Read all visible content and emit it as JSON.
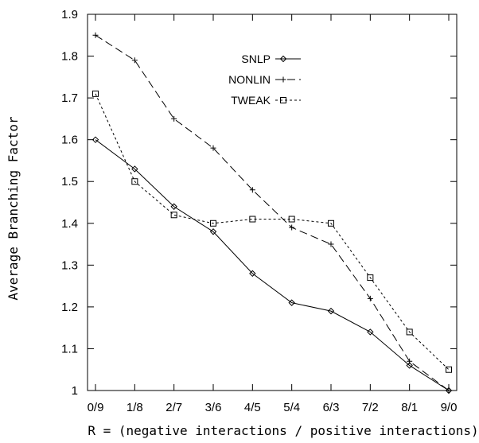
{
  "chart_data": {
    "type": "line",
    "title": "",
    "xlabel": "R = (negative interactions / positive interactions)",
    "ylabel": "Average Branching Factor",
    "categories": [
      "0/9",
      "1/8",
      "2/7",
      "3/6",
      "4/5",
      "5/4",
      "6/3",
      "7/2",
      "8/1",
      "9/0"
    ],
    "ylim": [
      1,
      1.9
    ],
    "yticks": [
      "1",
      "1.1",
      "1.2",
      "1.3",
      "1.4",
      "1.5",
      "1.6",
      "1.7",
      "1.8",
      "1.9"
    ],
    "grid": false,
    "legend_position": "top-center",
    "series": [
      {
        "name": "SNLP",
        "marker": "diamond",
        "dash": "solid",
        "values": [
          1.6,
          1.53,
          1.44,
          1.38,
          1.28,
          1.21,
          1.19,
          1.14,
          1.06,
          1.0
        ]
      },
      {
        "name": "NONLIN",
        "marker": "plus",
        "dash": "long-dash",
        "values": [
          1.85,
          1.79,
          1.65,
          1.58,
          1.48,
          1.39,
          1.35,
          1.22,
          1.07,
          1.0
        ]
      },
      {
        "name": "TWEAK",
        "marker": "square",
        "dash": "short-dash",
        "values": [
          1.71,
          1.5,
          1.42,
          1.4,
          1.41,
          1.41,
          1.4,
          1.27,
          1.14,
          1.05
        ]
      }
    ]
  }
}
